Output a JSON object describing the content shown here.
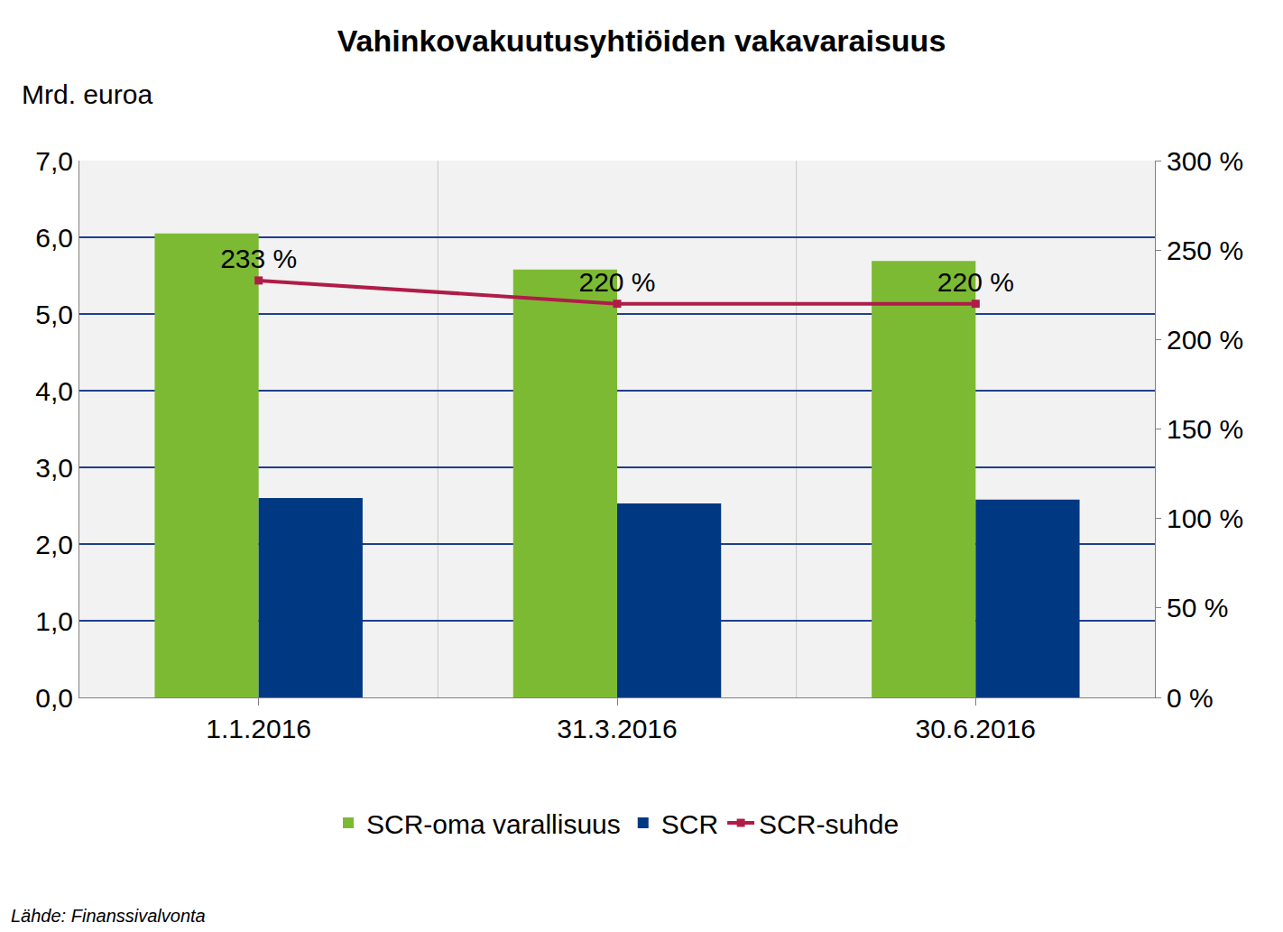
{
  "chart_data": {
    "type": "bar",
    "title": "Vahinkovakuutusyhtiöiden vakavaraisuus",
    "y_label": "Mrd. euroa",
    "source": "Lähde: Finanssivalvonta",
    "categories": [
      "1.1.2016",
      "31.3.2016",
      "30.6.2016"
    ],
    "series": [
      {
        "name": "SCR-oma varallisuus",
        "type": "bar",
        "color": "#7dba33",
        "values": [
          6.05,
          5.58,
          5.69
        ]
      },
      {
        "name": "SCR",
        "type": "bar",
        "color": "#003882",
        "values": [
          2.6,
          2.53,
          2.58
        ]
      },
      {
        "name": "SCR-suhde",
        "type": "line",
        "axis": "y2",
        "color": "#b01c48",
        "marker": "square",
        "values": [
          233,
          220,
          220
        ],
        "data_labels": true,
        "value_labels": [
          "233 %",
          "220 %",
          "220 %"
        ]
      }
    ],
    "ylim": [
      0,
      7
    ],
    "yticks": [
      {
        "value": 0,
        "label": "0,0"
      },
      {
        "value": 1,
        "label": "1,0"
      },
      {
        "value": 2,
        "label": "2,0"
      },
      {
        "value": 3,
        "label": "3,0"
      },
      {
        "value": 4,
        "label": "4,0"
      },
      {
        "value": 5,
        "label": "5,0"
      },
      {
        "value": 6,
        "label": "6,0"
      },
      {
        "value": 7,
        "label": "7,0"
      }
    ],
    "y2lim": [
      0,
      300
    ],
    "y2ticks": [
      {
        "value": 0,
        "label": "0 %"
      },
      {
        "value": 50,
        "label": "50 %"
      },
      {
        "value": 100,
        "label": "100 %"
      },
      {
        "value": 150,
        "label": "150 %"
      },
      {
        "value": 200,
        "label": "200 %"
      },
      {
        "value": 250,
        "label": "250 %"
      },
      {
        "value": 300,
        "label": "300 %"
      }
    ],
    "grid": true,
    "legend": "bottom"
  }
}
